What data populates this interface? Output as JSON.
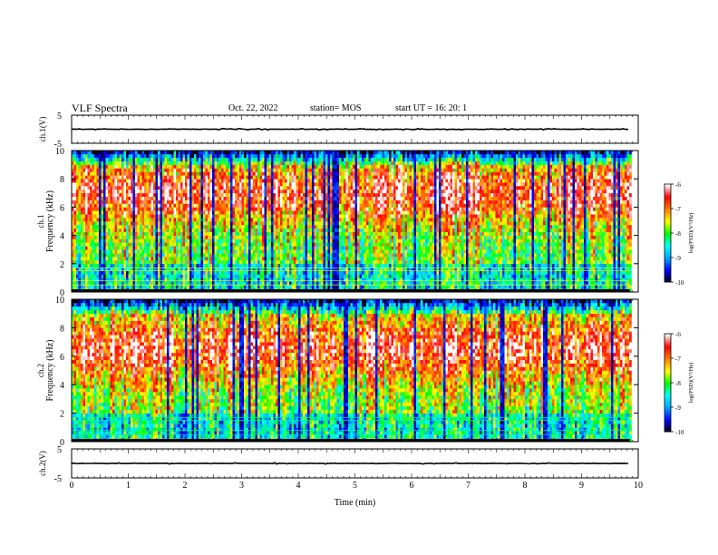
{
  "header": {
    "title": "VLF Spectra",
    "date": "Oct. 22, 2022",
    "station": "station= MOS",
    "start": "start  UT =   16: 20: 1"
  },
  "chart_data": [
    {
      "type": "line",
      "name": "ch1-waveform",
      "ylabel": "ch.1(V)",
      "ylim": [
        -5,
        5
      ],
      "yticks": [
        "5",
        "-5"
      ],
      "xlim": [
        0,
        10
      ],
      "values_note": "",
      "level": 0
    },
    {
      "type": "heatmap",
      "name": "ch1-spectrogram",
      "ylabel_line1": "ch.1",
      "ylabel_line2": "Frequency (kHz)",
      "ylim": [
        0,
        10
      ],
      "yticks": [
        "0",
        "2",
        "4",
        "6",
        "8",
        "10"
      ],
      "xlim": [
        0,
        10
      ],
      "colorbar": {
        "label": "log(PSD)(V²/Hz)",
        "ticks": [
          "-6",
          "-7",
          "-8",
          "-9",
          "-10"
        ],
        "range": [
          -10,
          -6
        ]
      }
    },
    {
      "type": "heatmap",
      "name": "ch2-spectrogram",
      "ylabel_line1": "ch.2",
      "ylabel_line2": "Frequency (kHz)",
      "ylim": [
        0,
        10
      ],
      "yticks": [
        "0",
        "2",
        "4",
        "6",
        "8",
        "10"
      ],
      "xlim": [
        0,
        10
      ],
      "colorbar": {
        "label": "log(PSD)(V²/Hz)",
        "ticks": [
          "-6",
          "-7",
          "-8",
          "-9",
          "-10"
        ],
        "range": [
          -10,
          -6
        ]
      }
    },
    {
      "type": "line",
      "name": "ch2-waveform",
      "ylabel": "ch.2(V)",
      "ylim": [
        -5,
        5
      ],
      "yticks": [
        "5",
        "-5"
      ],
      "xlim": [
        0,
        10
      ],
      "level": 0
    }
  ],
  "xaxis": {
    "label": "Time (min)",
    "ticks": [
      "0",
      "1",
      "2",
      "3",
      "4",
      "5",
      "6",
      "7",
      "8",
      "9",
      "10"
    ],
    "range": [
      0,
      10
    ],
    "data_end": 9.85
  },
  "colors": {
    "background": "#ffffff",
    "frame": "#000000",
    "colormap": [
      "#000000",
      "#0000ff",
      "#00a0ff",
      "#00ffff",
      "#00ff00",
      "#ffff00",
      "#ff8000",
      "#ff0000",
      "#ffffff"
    ]
  }
}
